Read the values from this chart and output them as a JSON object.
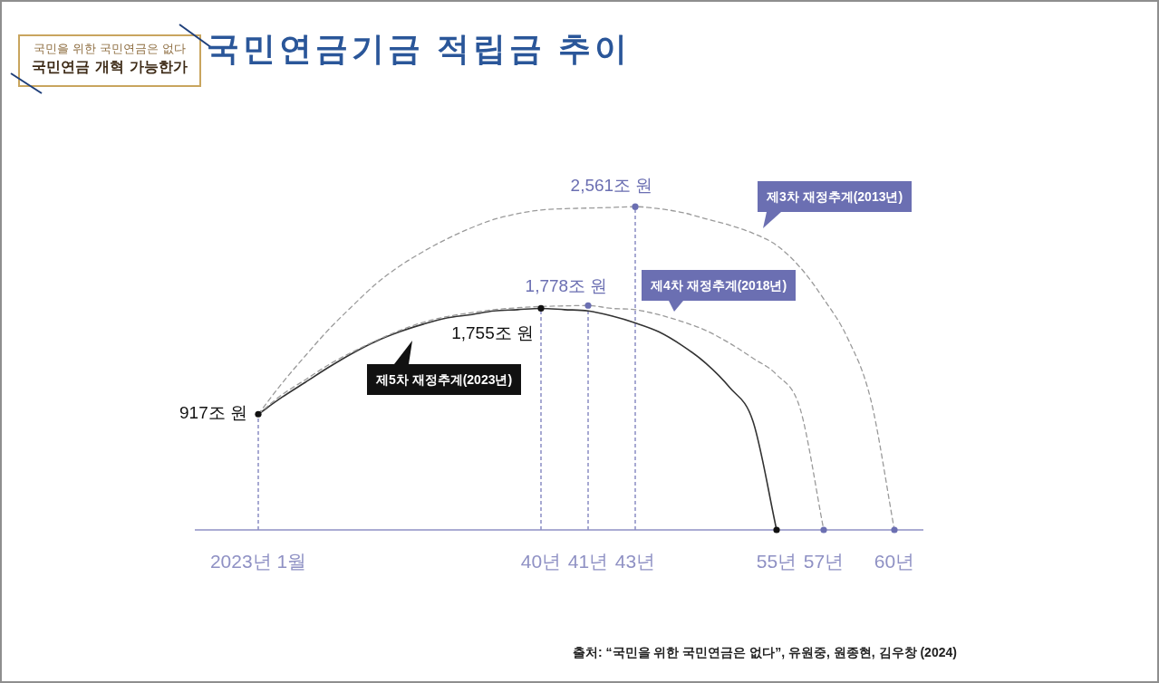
{
  "chart_data": {
    "type": "line",
    "title": "국민연금기금 적립금 추이",
    "annotations": [
      "국민을 위한 국민연금은 없다",
      "국민연금 개혁 가능한가",
      "출처: “국민을 위한 국민연금은 없다”, 유원중, 원종현, 김우창 (2024)"
    ],
    "categories": [
      "2023년 1월",
      null,
      null,
      null,
      null,
      null,
      null,
      null,
      null,
      null,
      null,
      null,
      "40년",
      null,
      "41년",
      null,
      "43년",
      null,
      null,
      null,
      null,
      null,
      "55년",
      null,
      "57년",
      null,
      null,
      "60년"
    ],
    "tick_labels": "x",
    "grid": false,
    "legend": false,
    "marker": "none",
    "series": [
      {
        "name": "제3차 재정추계(2013년)",
        "color": "#9a9a9a",
        "line_style": "dashed",
        "values": [
          917,
          1160,
          1380,
          1590,
          1775,
          1950,
          2090,
          2205,
          2305,
          2390,
          2460,
          2505,
          2535,
          2545,
          2550,
          2555,
          2561,
          2545,
          2515,
          2465,
          2415,
          2350,
          2255,
          2080,
          1830,
          1525,
          1030,
          0
        ]
      },
      {
        "name": "제4차 재정추계(2018년)",
        "color": "#9a9a9a",
        "line_style": "dashed",
        "values": [
          917,
          1070,
          1190,
          1310,
          1410,
          1500,
          1580,
          1645,
          1690,
          1720,
          1745,
          1760,
          1770,
          1775,
          1778,
          1755,
          1745,
          1705,
          1650,
          1580,
          1480,
          1360,
          1230,
          960,
          0,
          null,
          null,
          null
        ]
      },
      {
        "name": "제5차 재정추계(2023년)",
        "color": "#333333",
        "line_style": "solid",
        "values": [
          917,
          1050,
          1170,
          1290,
          1400,
          1495,
          1570,
          1630,
          1680,
          1705,
          1735,
          1745,
          1755,
          1745,
          1735,
          1695,
          1640,
          1570,
          1460,
          1320,
          1130,
          860,
          0,
          null,
          null,
          null,
          null,
          null
        ]
      },
      {
        "type": "lollipop",
        "color": "#8a8dc4",
        "line_style": "dashed",
        "marker": "circle",
        "values": [
          917,
          null,
          null,
          null,
          null,
          null,
          null,
          null,
          null,
          null,
          null,
          null,
          1755,
          null,
          1778,
          null,
          2561,
          null,
          null,
          null,
          null,
          null,
          0,
          null,
          0,
          null,
          null,
          0
        ],
        "colors": [
          "#111111",
          null,
          null,
          null,
          null,
          null,
          null,
          null,
          null,
          null,
          null,
          null,
          "#111111",
          null,
          "#6b6fb2",
          null,
          "#6b6fb2",
          null,
          null,
          null,
          null,
          null,
          "#111111",
          null,
          "#6b6fb2",
          null,
          null,
          "#6b6fb2"
        ],
        "value_labels": [
          "917조 원",
          null,
          null,
          null,
          null,
          null,
          null,
          null,
          null,
          null,
          null,
          null,
          "1,755조 원",
          null,
          "1,778조 원",
          null,
          "2,561조 원",
          null,
          null,
          null,
          null,
          null,
          null,
          null,
          null,
          null,
          null,
          null
        ]
      }
    ]
  }
}
